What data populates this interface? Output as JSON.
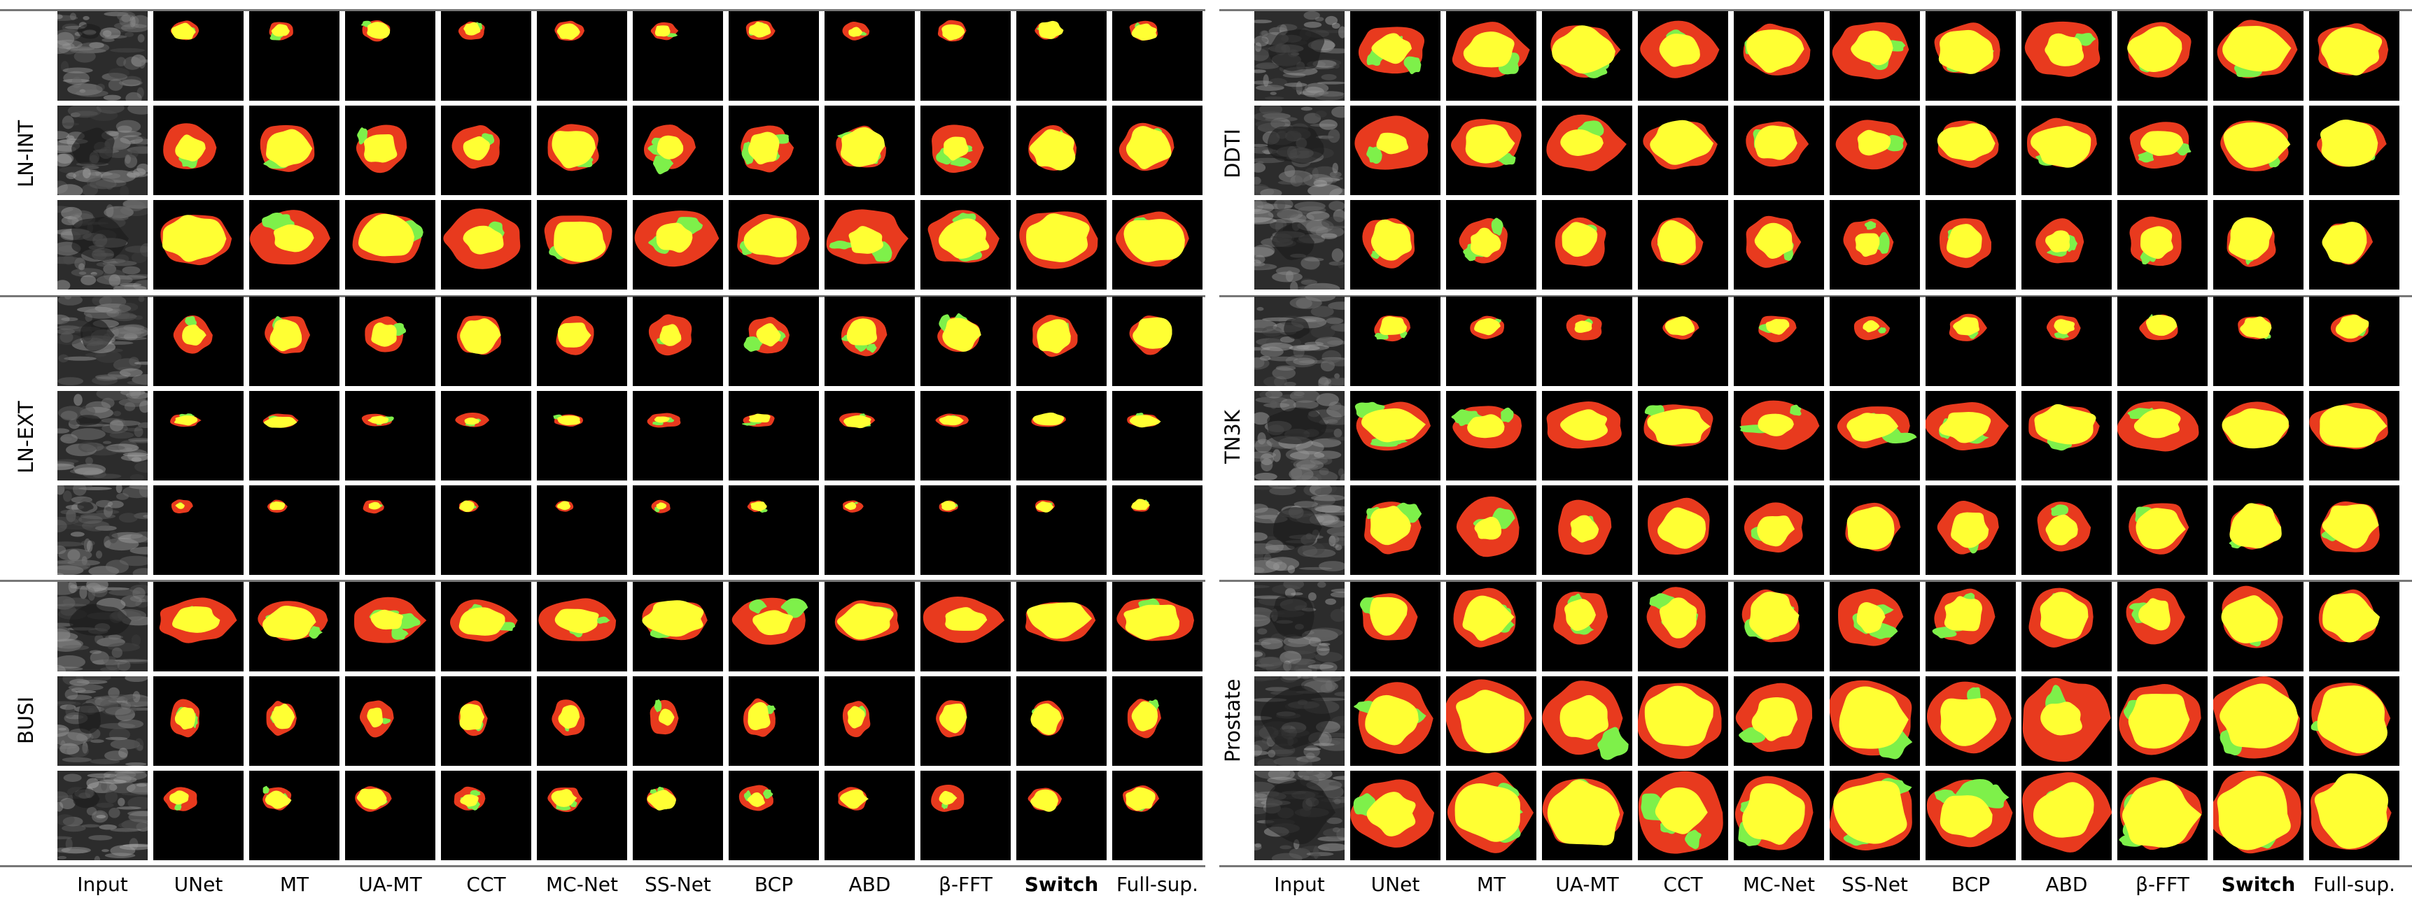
{
  "left_groups": [
    "LN-INT",
    "LN-EXT",
    "BUSI"
  ],
  "right_groups": [
    "DDTI",
    "TN3K",
    "Prostate"
  ],
  "columns": [
    "Input",
    "UNet",
    "MT",
    "UA-MT",
    "CCT",
    "MC-Net",
    "SS-Net",
    "BCP",
    "ABD",
    "β-FFT",
    "Switch",
    "Full-sup."
  ],
  "bold_column": "Switch",
  "legend_colors": {
    "overlap": "#ffff33",
    "false_negative": "#e83a1e",
    "false_positive": "#7ef04a",
    "background": "#000000"
  }
}
